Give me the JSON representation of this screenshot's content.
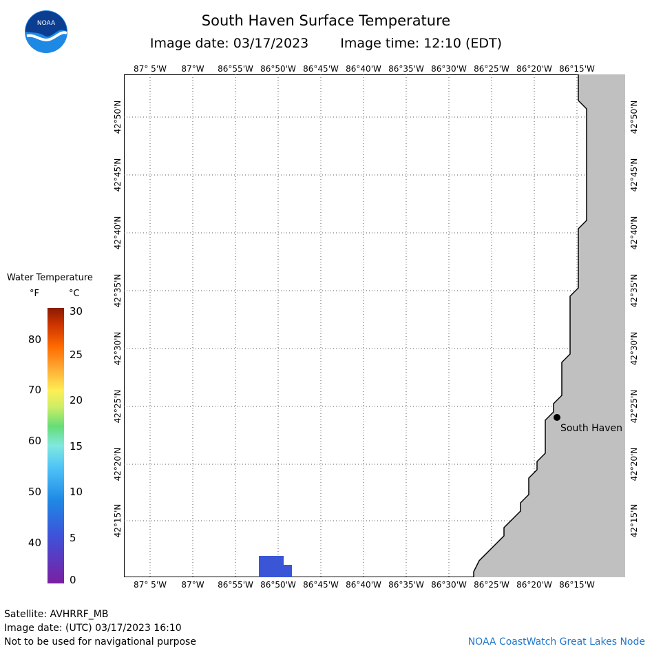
{
  "header": {
    "title": "South Haven Surface Temperature",
    "image_date": "Image date: 03/17/2023",
    "image_time": "Image time: 12:10 (EDT)"
  },
  "logo": {
    "text": "NOAA"
  },
  "map": {
    "lon_labels": [
      "87° 5'W",
      "87°W",
      "86°55'W",
      "86°50'W",
      "86°45'W",
      "86°40'W",
      "86°35'W",
      "86°30'W",
      "86°25'W",
      "86°20'W",
      "86°15'W"
    ],
    "lat_labels": [
      "42°50'N",
      "42°45'N",
      "42°40'N",
      "42°35'N",
      "42°30'N",
      "42°25'N",
      "42°20'N",
      "42°15'N"
    ],
    "city": {
      "name": "South Haven",
      "lon": -86.2737,
      "lat": 42.4031
    },
    "land_color": "#c0c0c0",
    "water_pixel_color": "#3a55d6",
    "grid": "dotted"
  },
  "legend": {
    "title": "Water Temperature",
    "unit_f": "°F",
    "unit_c": "°C",
    "f_ticks": [
      "80",
      "70",
      "60",
      "50",
      "40"
    ],
    "c_ticks": [
      "30",
      "25",
      "20",
      "15",
      "10",
      "5",
      "0"
    ]
  },
  "footer": {
    "satellite": "Satellite: AVHRRF_MB",
    "utc_date": "Image date: (UTC) 03/17/2023  16:10",
    "disclaimer": "Not to be used for navigational purpose",
    "credit": "NOAA CoastWatch Great Lakes Node"
  }
}
